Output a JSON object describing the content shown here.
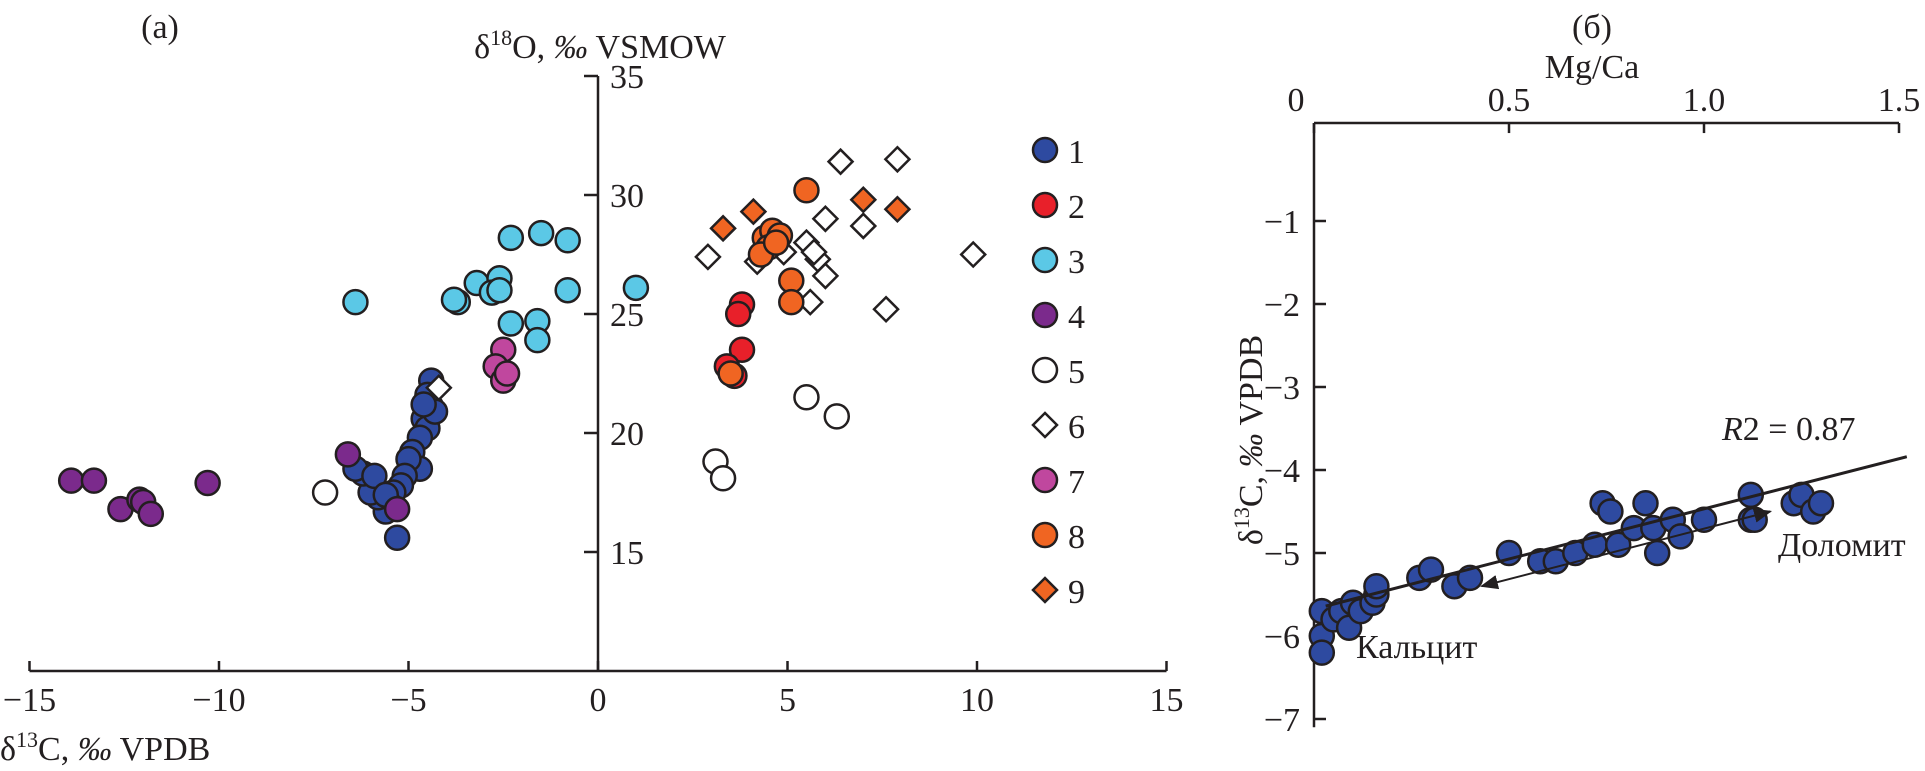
{
  "chart_data": [
    {
      "type": "scatter",
      "panel_label": "(a)",
      "xlabel": "δ13C, ‰ VPDB",
      "ylabel": "δ18O, ‰ VSMOW",
      "xlim": [
        -15,
        15
      ],
      "ylim": [
        10,
        35
      ],
      "xticks": [
        -15,
        -10,
        -5,
        0,
        5,
        10,
        15
      ],
      "yticks": [
        15,
        20,
        25,
        30,
        35
      ],
      "xtick_labels": [
        "−15",
        "−10",
        "−5",
        "0",
        "5",
        "10",
        "15"
      ],
      "ytick_labels": [
        "15",
        "20",
        "25",
        "30",
        "35"
      ],
      "legend_position": "right",
      "series": [
        {
          "name": "1",
          "marker": "circle",
          "color": "#2e4aa0",
          "points": [
            [
              -4.4,
              22.2
            ],
            [
              -4.5,
              21.6
            ],
            [
              -4.4,
              21.1
            ],
            [
              -4.6,
              20.6
            ],
            [
              -4.5,
              20.2
            ],
            [
              -4.7,
              19.8
            ],
            [
              -4.9,
              19.2
            ],
            [
              -4.7,
              18.5
            ],
            [
              -5.0,
              18.9
            ],
            [
              -5.1,
              18.2
            ],
            [
              -5.2,
              17.8
            ],
            [
              -5.4,
              17.5
            ],
            [
              -5.5,
              17.0
            ],
            [
              -5.6,
              16.7
            ],
            [
              -5.8,
              17.3
            ],
            [
              -6.0,
              17.5
            ],
            [
              -6.2,
              18.3
            ],
            [
              -6.4,
              18.5
            ],
            [
              -5.9,
              18.2
            ],
            [
              -5.6,
              17.4
            ],
            [
              -5.3,
              15.6
            ],
            [
              -4.3,
              20.9
            ],
            [
              -4.6,
              21.2
            ]
          ]
        },
        {
          "name": "2",
          "marker": "circle",
          "color": "#e8202a",
          "points": [
            [
              3.8,
              25.4
            ],
            [
              3.7,
              25.0
            ],
            [
              3.8,
              23.5
            ],
            [
              3.4,
              22.8
            ],
            [
              3.6,
              22.4
            ]
          ]
        },
        {
          "name": "3",
          "marker": "circle",
          "color": "#5bc8e6",
          "points": [
            [
              -6.4,
              25.5
            ],
            [
              -2.3,
              28.2
            ],
            [
              -1.5,
              28.4
            ],
            [
              -0.8,
              28.1
            ],
            [
              -3.7,
              25.5
            ],
            [
              -3.8,
              25.6
            ],
            [
              -3.2,
              26.3
            ],
            [
              -2.6,
              26.5
            ],
            [
              -2.8,
              25.9
            ],
            [
              -2.6,
              26.0
            ],
            [
              -0.8,
              26.0
            ],
            [
              -2.3,
              24.6
            ],
            [
              -1.6,
              24.7
            ],
            [
              -1.6,
              23.9
            ],
            [
              1.0,
              26.1
            ]
          ]
        },
        {
          "name": "4",
          "marker": "circle",
          "color": "#7b2a8c",
          "points": [
            [
              -13.9,
              18.0
            ],
            [
              -13.3,
              18.0
            ],
            [
              -10.3,
              17.9
            ],
            [
              -12.6,
              16.8
            ],
            [
              -12.1,
              17.2
            ],
            [
              -12.0,
              17.1
            ],
            [
              -11.8,
              16.6
            ],
            [
              -6.6,
              19.1
            ],
            [
              -5.3,
              16.8
            ]
          ]
        },
        {
          "name": "5",
          "marker": "circle",
          "color": "#ffffff",
          "points": [
            [
              -7.2,
              17.5
            ],
            [
              3.1,
              18.8
            ],
            [
              3.3,
              18.1
            ],
            [
              5.5,
              21.5
            ],
            [
              6.3,
              20.7
            ]
          ]
        },
        {
          "name": "6",
          "marker": "diamond",
          "color": "#ffffff",
          "points": [
            [
              -4.2,
              21.9
            ],
            [
              2.9,
              27.4
            ],
            [
              4.2,
              27.2
            ],
            [
              5.5,
              28.0
            ],
            [
              5.8,
              27.3
            ],
            [
              6.0,
              26.6
            ],
            [
              5.6,
              25.5
            ],
            [
              6.0,
              29.0
            ],
            [
              6.4,
              31.4
            ],
            [
              7.0,
              28.7
            ],
            [
              7.9,
              31.5
            ],
            [
              7.6,
              25.2
            ],
            [
              9.9,
              27.5
            ],
            [
              4.9,
              27.6
            ],
            [
              5.7,
              27.6
            ]
          ]
        },
        {
          "name": "7",
          "marker": "circle",
          "color": "#c0479e",
          "points": [
            [
              -2.5,
              23.5
            ],
            [
              -2.7,
              22.8
            ],
            [
              -2.5,
              22.2
            ],
            [
              -2.4,
              22.5
            ]
          ]
        },
        {
          "name": "8",
          "marker": "circle",
          "color": "#f06522",
          "points": [
            [
              5.5,
              30.2
            ],
            [
              4.4,
              28.2
            ],
            [
              4.6,
              28.5
            ],
            [
              4.8,
              28.3
            ],
            [
              4.5,
              27.8
            ],
            [
              4.3,
              27.5
            ],
            [
              5.1,
              26.4
            ],
            [
              5.1,
              25.5
            ],
            [
              3.5,
              22.5
            ],
            [
              4.7,
              28.0
            ]
          ]
        },
        {
          "name": "9",
          "marker": "diamond",
          "color": "#f06522",
          "points": [
            [
              3.3,
              28.6
            ],
            [
              4.1,
              29.3
            ],
            [
              7.0,
              29.8
            ],
            [
              7.9,
              29.4
            ]
          ]
        }
      ]
    },
    {
      "type": "scatter",
      "panel_label": "(б)",
      "xlabel": "Mg/Ca",
      "ylabel": "δ13C, ‰ VPDB",
      "xlim": [
        0,
        1.5
      ],
      "ylim": [
        -7.1,
        0.18
      ],
      "xticks": [
        0,
        0.5,
        1.0,
        1.5
      ],
      "xtick_labels": [
        "0",
        "0.5",
        "1.0",
        "1.5"
      ],
      "yticks": [
        -1,
        -2,
        -3,
        -4,
        -5,
        -6,
        -7
      ],
      "ytick_labels": [
        "−1",
        "−2",
        "−3",
        "−4",
        "−5",
        "−6",
        "−7"
      ],
      "marker_color": "#2e4aa0",
      "points": [
        [
          0.02,
          -5.7
        ],
        [
          0.02,
          -6.0
        ],
        [
          0.02,
          -6.2
        ],
        [
          0.05,
          -5.8
        ],
        [
          0.07,
          -5.7
        ],
        [
          0.09,
          -5.9
        ],
        [
          0.1,
          -5.6
        ],
        [
          0.12,
          -5.7
        ],
        [
          0.15,
          -5.6
        ],
        [
          0.16,
          -5.5
        ],
        [
          0.16,
          -5.4
        ],
        [
          0.27,
          -5.3
        ],
        [
          0.3,
          -5.2
        ],
        [
          0.36,
          -5.4
        ],
        [
          0.4,
          -5.3
        ],
        [
          0.5,
          -5.0
        ],
        [
          0.58,
          -5.1
        ],
        [
          0.62,
          -5.1
        ],
        [
          0.67,
          -5.0
        ],
        [
          0.72,
          -4.9
        ],
        [
          0.74,
          -4.4
        ],
        [
          0.76,
          -4.5
        ],
        [
          0.78,
          -4.9
        ],
        [
          0.82,
          -4.7
        ],
        [
          0.85,
          -4.4
        ],
        [
          0.87,
          -4.7
        ],
        [
          0.88,
          -5.0
        ],
        [
          0.92,
          -4.6
        ],
        [
          0.94,
          -4.8
        ],
        [
          1.0,
          -4.6
        ],
        [
          1.12,
          -4.3
        ],
        [
          1.12,
          -4.6
        ],
        [
          1.13,
          -4.6
        ],
        [
          1.23,
          -4.4
        ],
        [
          1.25,
          -4.3
        ],
        [
          1.28,
          -4.5
        ],
        [
          1.3,
          -4.4
        ]
      ],
      "trendline": {
        "x": [
          0.03,
          1.52
        ],
        "y": [
          -5.64,
          -3.84
        ]
      },
      "r2_label": "R",
      "r2_value": "2 = 0.87",
      "arrow": {
        "from": [
          0.43,
          -5.4
        ],
        "to": [
          1.17,
          -4.5
        ]
      },
      "annotation_right": "Доломит",
      "annotation_left": "Кальцит"
    }
  ]
}
